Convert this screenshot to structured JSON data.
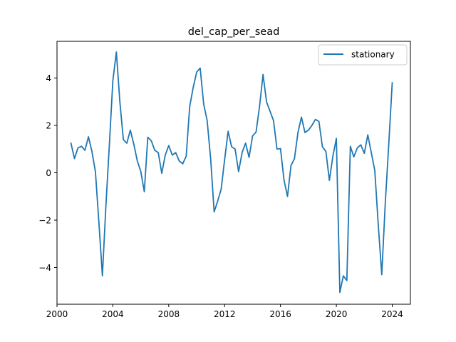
{
  "chart_data": {
    "type": "line",
    "title": "del_cap_per_sead",
    "xlabel": "",
    "ylabel": "",
    "xlim": [
      2000.0,
      2025.3
    ],
    "ylim": [
      -5.55,
      5.55
    ],
    "x_ticks": [
      2000,
      2004,
      2008,
      2012,
      2016,
      2020,
      2024
    ],
    "y_ticks": [
      -4,
      -2,
      0,
      2,
      4
    ],
    "x_tick_labels": [
      "2000",
      "2004",
      "2008",
      "2012",
      "2016",
      "2020",
      "2024"
    ],
    "y_tick_labels": [
      "−4",
      "−2",
      "0",
      "2",
      "4"
    ],
    "legend": {
      "position": "top-right",
      "entries": [
        "stationary"
      ]
    },
    "grid": false,
    "colors": {
      "series": "#1f77b4",
      "axes": "#000000",
      "background": "#ffffff"
    },
    "series": [
      {
        "name": "stationary",
        "x": [
          2001.0,
          2001.25,
          2001.5,
          2001.75,
          2002.0,
          2002.25,
          2002.5,
          2002.75,
          2003.0,
          2003.25,
          2003.5,
          2003.75,
          2004.0,
          2004.25,
          2004.5,
          2004.75,
          2005.0,
          2005.25,
          2005.5,
          2005.75,
          2006.0,
          2006.25,
          2006.5,
          2006.75,
          2007.0,
          2007.25,
          2007.5,
          2007.75,
          2008.0,
          2008.25,
          2008.5,
          2008.75,
          2009.0,
          2009.25,
          2009.5,
          2009.75,
          2010.0,
          2010.25,
          2010.5,
          2010.75,
          2011.0,
          2011.25,
          2011.5,
          2011.75,
          2012.0,
          2012.25,
          2012.5,
          2012.75,
          2013.0,
          2013.25,
          2013.5,
          2013.75,
          2014.0,
          2014.25,
          2014.5,
          2014.75,
          2015.0,
          2015.25,
          2015.5,
          2015.75,
          2016.0,
          2016.25,
          2016.5,
          2016.75,
          2017.0,
          2017.25,
          2017.5,
          2017.75,
          2018.0,
          2018.25,
          2018.5,
          2018.75,
          2019.0,
          2019.25,
          2019.5,
          2019.75,
          2020.0,
          2020.25,
          2020.5,
          2020.75,
          2021.0,
          2021.25,
          2021.5,
          2021.75,
          2022.0,
          2022.25,
          2022.5,
          2022.75,
          2023.0,
          2023.25,
          2023.5,
          2023.75,
          2024.0
        ],
        "values": [
          1.25,
          0.6,
          1.05,
          1.12,
          0.95,
          1.52,
          0.9,
          0.05,
          -2.1,
          -4.35,
          -1.4,
          1.2,
          3.9,
          5.1,
          3.0,
          1.4,
          1.25,
          1.8,
          1.2,
          0.5,
          0.05,
          -0.8,
          1.5,
          1.35,
          0.95,
          0.85,
          -0.02,
          0.75,
          1.15,
          0.75,
          0.85,
          0.5,
          0.38,
          0.7,
          2.8,
          3.6,
          4.25,
          4.42,
          2.9,
          2.2,
          0.6,
          -1.65,
          -1.2,
          -0.7,
          0.55,
          1.75,
          1.1,
          1.0,
          0.05,
          0.85,
          1.25,
          0.65,
          1.55,
          1.72,
          2.8,
          4.15,
          3.0,
          2.6,
          2.2,
          1.0,
          1.02,
          -0.3,
          -1.0,
          0.3,
          0.6,
          1.7,
          2.35,
          1.7,
          1.8,
          2.0,
          2.25,
          2.17,
          1.1,
          0.9,
          -0.32,
          0.7,
          1.45,
          -5.05,
          -4.35,
          -4.55,
          1.12,
          0.67,
          1.05,
          1.18,
          0.82,
          1.6,
          0.85,
          0.1,
          -2.2,
          -4.3,
          -1.3,
          1.2,
          3.8
        ]
      }
    ]
  }
}
